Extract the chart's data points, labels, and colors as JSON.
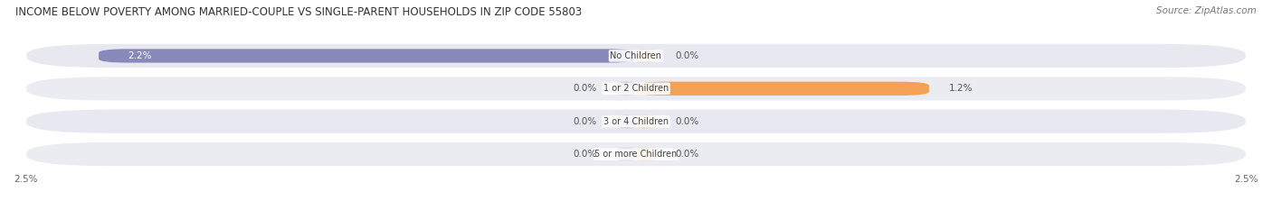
{
  "title": "INCOME BELOW POVERTY AMONG MARRIED-COUPLE VS SINGLE-PARENT HOUSEHOLDS IN ZIP CODE 55803",
  "source": "Source: ZipAtlas.com",
  "categories": [
    "No Children",
    "1 or 2 Children",
    "3 or 4 Children",
    "5 or more Children"
  ],
  "married_values": [
    2.2,
    0.0,
    0.0,
    0.0
  ],
  "single_values": [
    0.0,
    1.2,
    0.0,
    0.0
  ],
  "married_color": "#8888bb",
  "single_color": "#f4a055",
  "married_stub_color": "#aaaacc",
  "single_stub_color": "#f8c090",
  "bg_row_color": "#e8e8f0",
  "bg_row_color2": "#ebebf2",
  "xlim": 2.5,
  "bar_height": 0.42,
  "stub_val": 0.08,
  "title_fontsize": 8.5,
  "source_fontsize": 7.5,
  "label_fontsize": 7.5,
  "category_fontsize": 7.0,
  "tick_fontsize": 7.5,
  "legend_fontsize": 7.5
}
